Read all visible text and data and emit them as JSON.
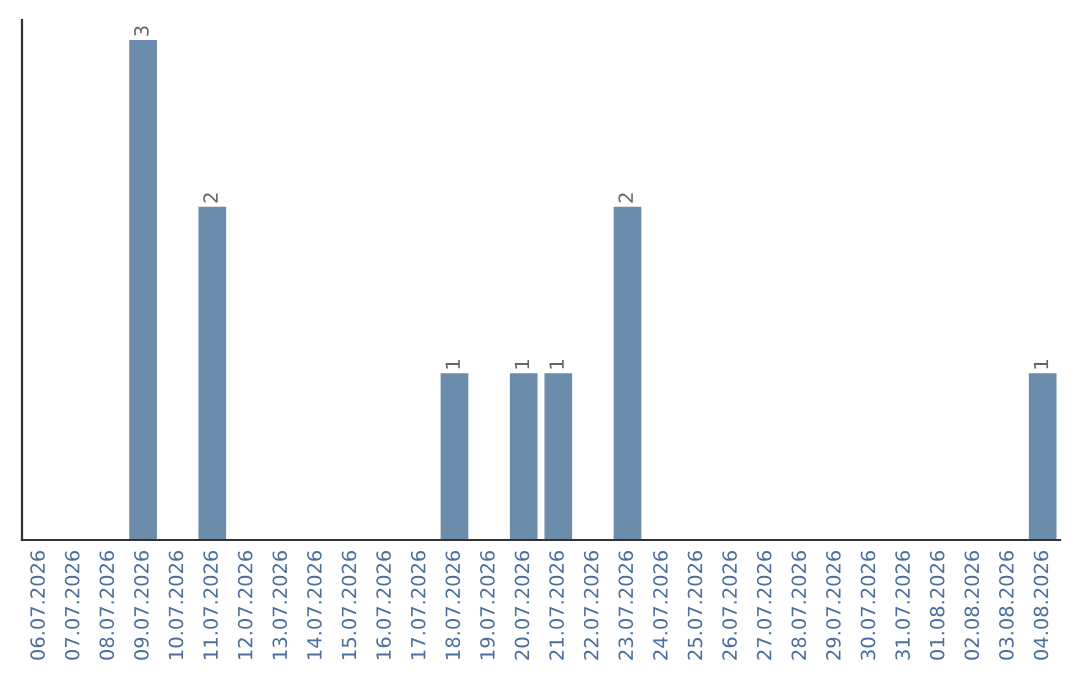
{
  "chart_data": {
    "type": "bar",
    "categories": [
      "06.07.2026",
      "07.07.2026",
      "08.07.2026",
      "09.07.2026",
      "10.07.2026",
      "11.07.2026",
      "12.07.2026",
      "13.07.2026",
      "14.07.2026",
      "15.07.2026",
      "16.07.2026",
      "17.07.2026",
      "18.07.2026",
      "19.07.2026",
      "20.07.2026",
      "21.07.2026",
      "22.07.2026",
      "23.07.2026",
      "24.07.2026",
      "25.07.2026",
      "26.07.2026",
      "27.07.2026",
      "28.07.2026",
      "29.07.2026",
      "30.07.2026",
      "31.07.2026",
      "01.08.2026",
      "02.08.2026",
      "03.08.2026",
      "04.08.2026"
    ],
    "values": [
      0,
      0,
      0,
      3,
      0,
      2,
      0,
      0,
      0,
      0,
      0,
      0,
      1,
      0,
      1,
      1,
      0,
      2,
      0,
      0,
      0,
      0,
      0,
      0,
      0,
      0,
      0,
      0,
      0,
      1
    ],
    "value_labels": [
      null,
      null,
      null,
      "3",
      null,
      "2",
      null,
      null,
      null,
      null,
      null,
      null,
      "1",
      null,
      "1",
      "1",
      null,
      "2",
      null,
      null,
      null,
      null,
      null,
      null,
      null,
      null,
      null,
      null,
      null,
      "1"
    ],
    "color": "#6b8cab",
    "tick_labels": "x",
    "grid": false,
    "legend": false
  }
}
